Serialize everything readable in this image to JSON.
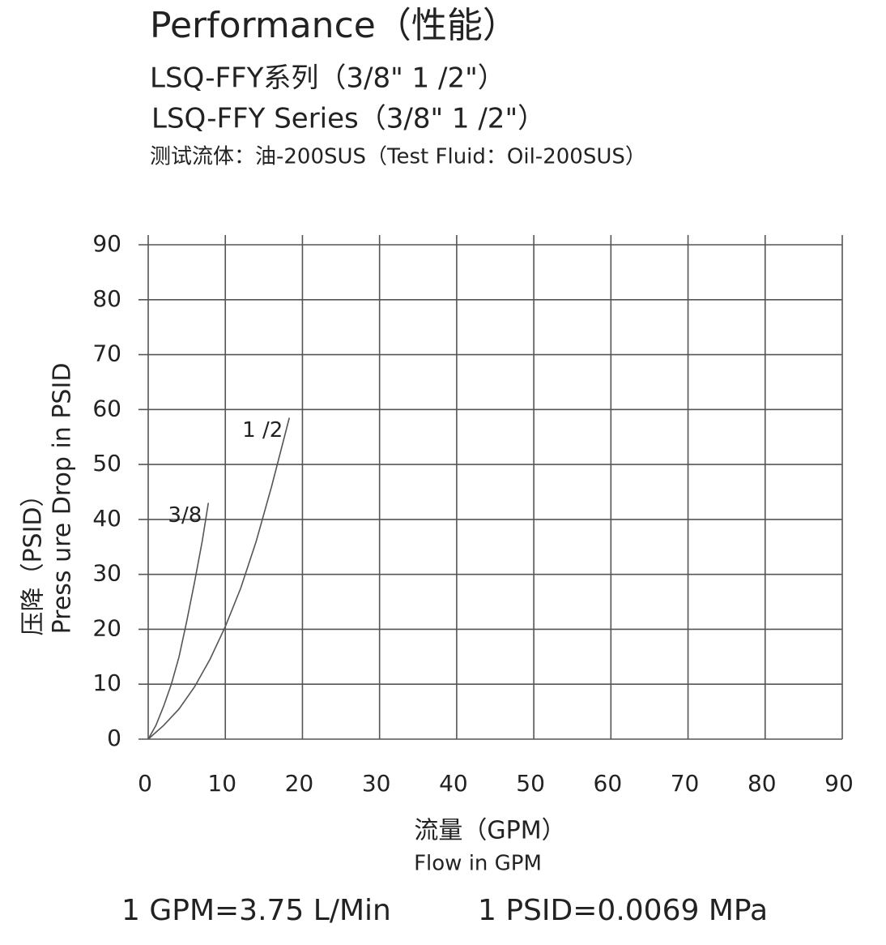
{
  "chart_data": {
    "type": "line",
    "title": "Performance（性能）",
    "subtitles": [
      "LSQ-FFY系列（3/8\" 1 /2\"）",
      "LSQ-FFY Series（3/8\" 1 /2\"）",
      "测试流体：油-200SUS（Test Fluid：Oil-200SUS）"
    ],
    "x_label": [
      "流量（GPM）",
      "Flow in GPM"
    ],
    "y_label": [
      "压降（PSID）",
      "Press ure Drop in PSID"
    ],
    "notes": [
      "1 GPM=3.75 L/Min",
      "1 PSID=0.0069 MPa"
    ],
    "xlim": [
      0,
      90
    ],
    "xticks": [
      0,
      10,
      20,
      30,
      40,
      50,
      60,
      70,
      80,
      90
    ],
    "ylim": [
      0,
      90
    ],
    "yticks": [
      0,
      10,
      20,
      30,
      40,
      50,
      60,
      70,
      80,
      90
    ],
    "grid": true,
    "series": [
      {
        "name": "3/8",
        "color": "#555555",
        "x": [
          0,
          1,
          2,
          3,
          4,
          5,
          6,
          7,
          7.8
        ],
        "values": [
          0,
          2.5,
          6,
          10,
          15,
          21.5,
          28.5,
          36,
          43
        ]
      },
      {
        "name": "1 /2",
        "color": "#555555",
        "x": [
          0,
          2,
          4,
          6,
          8,
          10,
          12,
          14,
          16,
          18.3
        ],
        "values": [
          0,
          2.5,
          5.5,
          9.5,
          14.5,
          20.5,
          27.5,
          36,
          46,
          58.5
        ]
      }
    ]
  }
}
